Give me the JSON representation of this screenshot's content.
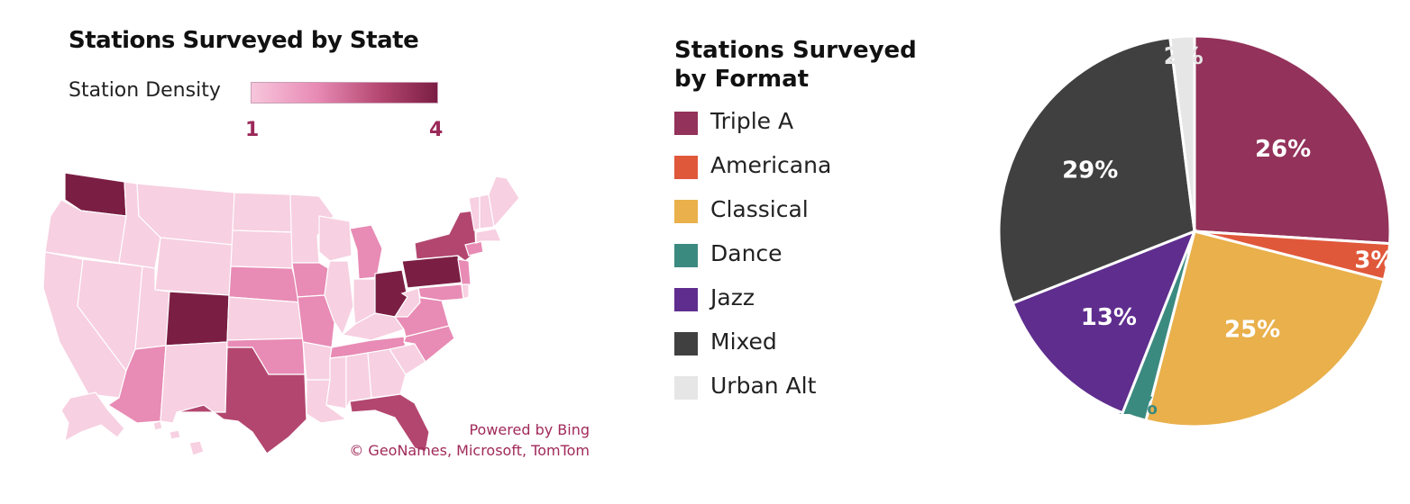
{
  "map": {
    "title": "Stations Surveyed by State",
    "density_label": "Station Density",
    "density_min": "1",
    "density_max": "4",
    "attribution_line1": "Powered by Bing",
    "attribution_line2": "© GeoNames, Microsoft, TomTom",
    "colors": {
      "level1": "#f7d0e1",
      "level2": "#e88bb5",
      "level3": "#b3466f",
      "level4": "#7b1e43",
      "border": "#ffffff"
    }
  },
  "chart_data": {
    "type": "pie",
    "title": "Stations Surveyed by Format",
    "title_line1": "Stations Surveyed",
    "title_line2": "by Format",
    "legend_position": "left",
    "slices": [
      {
        "name": "Triple A",
        "value": 26,
        "label": "26%",
        "color": "#93325a",
        "label_color": "#ffffff"
      },
      {
        "name": "Americana",
        "value": 3,
        "label": "3%",
        "color": "#e0583a",
        "label_color": "#ffffff"
      },
      {
        "name": "Classical",
        "value": 25,
        "label": "25%",
        "color": "#e9b04b",
        "label_color": "#ffffff"
      },
      {
        "name": "Dance",
        "value": 2,
        "label": "2%",
        "color": "#3b8a80",
        "label_color": "#3b8a80"
      },
      {
        "name": "Jazz",
        "value": 13,
        "label": "13%",
        "color": "#5f2d8e",
        "label_color": "#ffffff"
      },
      {
        "name": "Mixed",
        "value": 29,
        "label": "29%",
        "color": "#404040",
        "label_color": "#ffffff"
      },
      {
        "name": "Urban Alt",
        "value": 2,
        "label": "2%",
        "color": "#e6e6e6",
        "label_color": "#e6e6e6"
      }
    ]
  }
}
